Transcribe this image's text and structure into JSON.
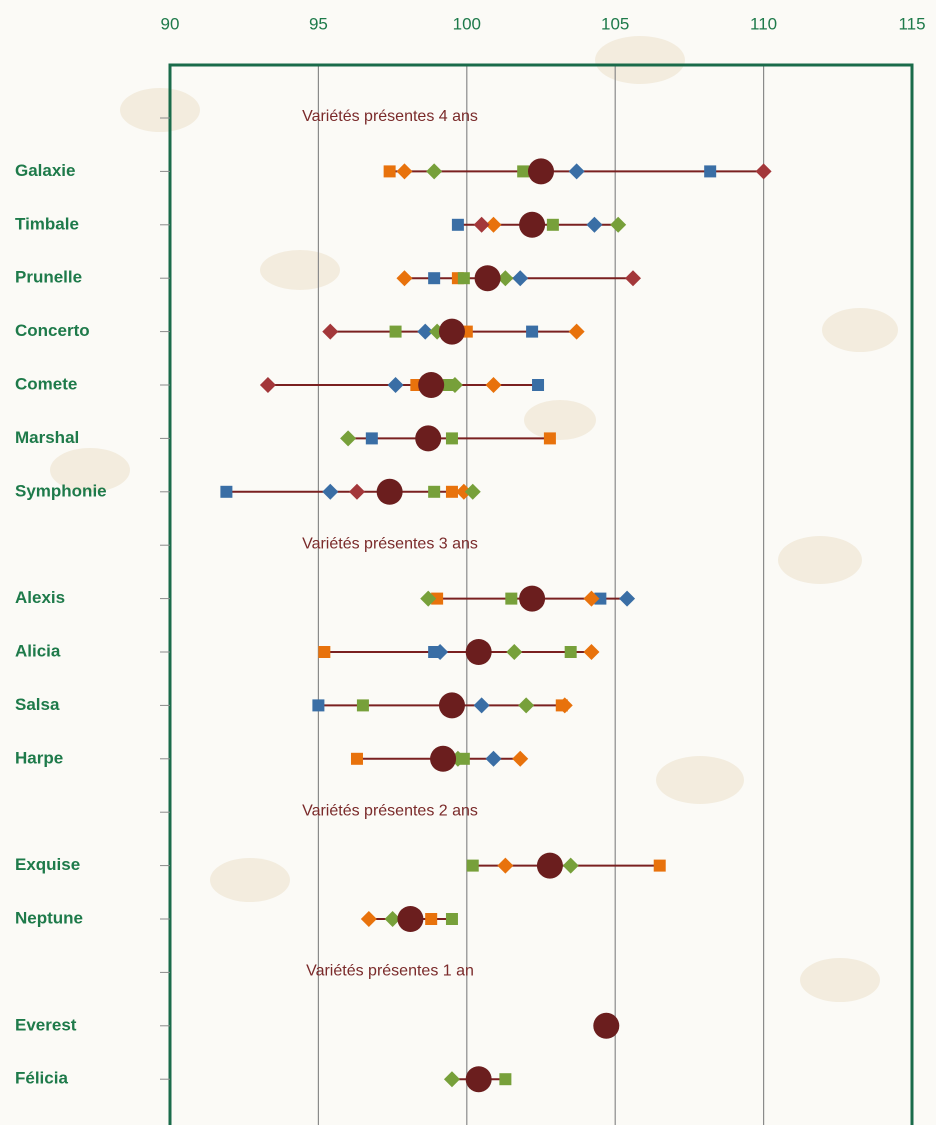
{
  "chart_data": {
    "type": "dot",
    "categories": [
      null,
      "Galaxie",
      "Timbale",
      "Prunelle",
      "Concerto",
      "Comete",
      "Marshal",
      "Symphonie",
      null,
      "Alexis",
      "Alicia",
      "Salsa",
      "Harpe",
      null,
      "Exquise",
      "Neptune",
      null,
      "Everest",
      "Félicia"
    ],
    "annotations": [
      "Variétés présentes 4 ans",
      "Variétés présentes 3 ans",
      "Variétés présentes 2 ans",
      "Variétés présentes 1 an"
    ],
    "xlim": [
      90,
      115
    ],
    "xticks": [
      90,
      95,
      100,
      105,
      110,
      115
    ],
    "grid": true,
    "range_color": "#7a2020",
    "series": [
      {
        "color": "#3a6ea5",
        "marker": "square",
        "values": [
          null,
          108.2,
          99.7,
          98.9,
          102.2,
          102.4,
          96.8,
          91.9,
          null,
          104.5,
          98.9,
          95.0,
          null,
          null,
          null,
          null,
          null,
          null,
          null
        ]
      },
      {
        "color": "#3a6ea5",
        "marker": "diamond",
        "values": [
          null,
          103.7,
          104.3,
          101.8,
          98.6,
          97.6,
          null,
          95.4,
          null,
          105.4,
          99.1,
          100.5,
          100.9,
          null,
          null,
          null,
          null,
          null,
          null
        ]
      },
      {
        "color": "#e8720c",
        "marker": "square",
        "values": [
          null,
          97.4,
          null,
          99.7,
          100.0,
          98.3,
          102.8,
          99.5,
          null,
          99.0,
          95.2,
          103.2,
          96.3,
          null,
          106.5,
          98.8,
          null,
          null,
          null
        ]
      },
      {
        "color": "#e8720c",
        "marker": "diamond",
        "values": [
          null,
          97.9,
          100.9,
          97.9,
          103.7,
          100.9,
          null,
          99.9,
          null,
          104.2,
          104.2,
          103.3,
          101.8,
          null,
          101.3,
          96.7,
          null,
          null,
          null
        ]
      },
      {
        "color": "#77a03a",
        "marker": "square",
        "values": [
          null,
          101.9,
          102.9,
          99.9,
          97.6,
          99.4,
          99.5,
          98.9,
          null,
          101.5,
          103.5,
          96.5,
          99.9,
          null,
          100.2,
          99.5,
          null,
          null,
          101.3
        ]
      },
      {
        "color": "#77a03a",
        "marker": "diamond",
        "values": [
          null,
          98.9,
          105.1,
          101.3,
          99.0,
          99.6,
          96.0,
          100.2,
          null,
          98.7,
          101.6,
          102.0,
          99.7,
          null,
          103.5,
          97.5,
          null,
          null,
          99.5
        ]
      },
      {
        "color": "#a3373a",
        "marker": "diamond",
        "values": [
          null,
          110.0,
          100.5,
          105.6,
          95.4,
          93.3,
          null,
          96.3,
          null,
          null,
          null,
          null,
          null,
          null,
          null,
          null,
          null,
          null,
          null
        ]
      },
      {
        "color": "#6b1e1e",
        "marker": "circle",
        "values": [
          null,
          102.5,
          102.2,
          100.7,
          99.5,
          98.8,
          98.7,
          97.4,
          null,
          102.2,
          100.4,
          99.5,
          99.2,
          null,
          102.8,
          98.1,
          null,
          104.7,
          100.4
        ]
      }
    ]
  }
}
